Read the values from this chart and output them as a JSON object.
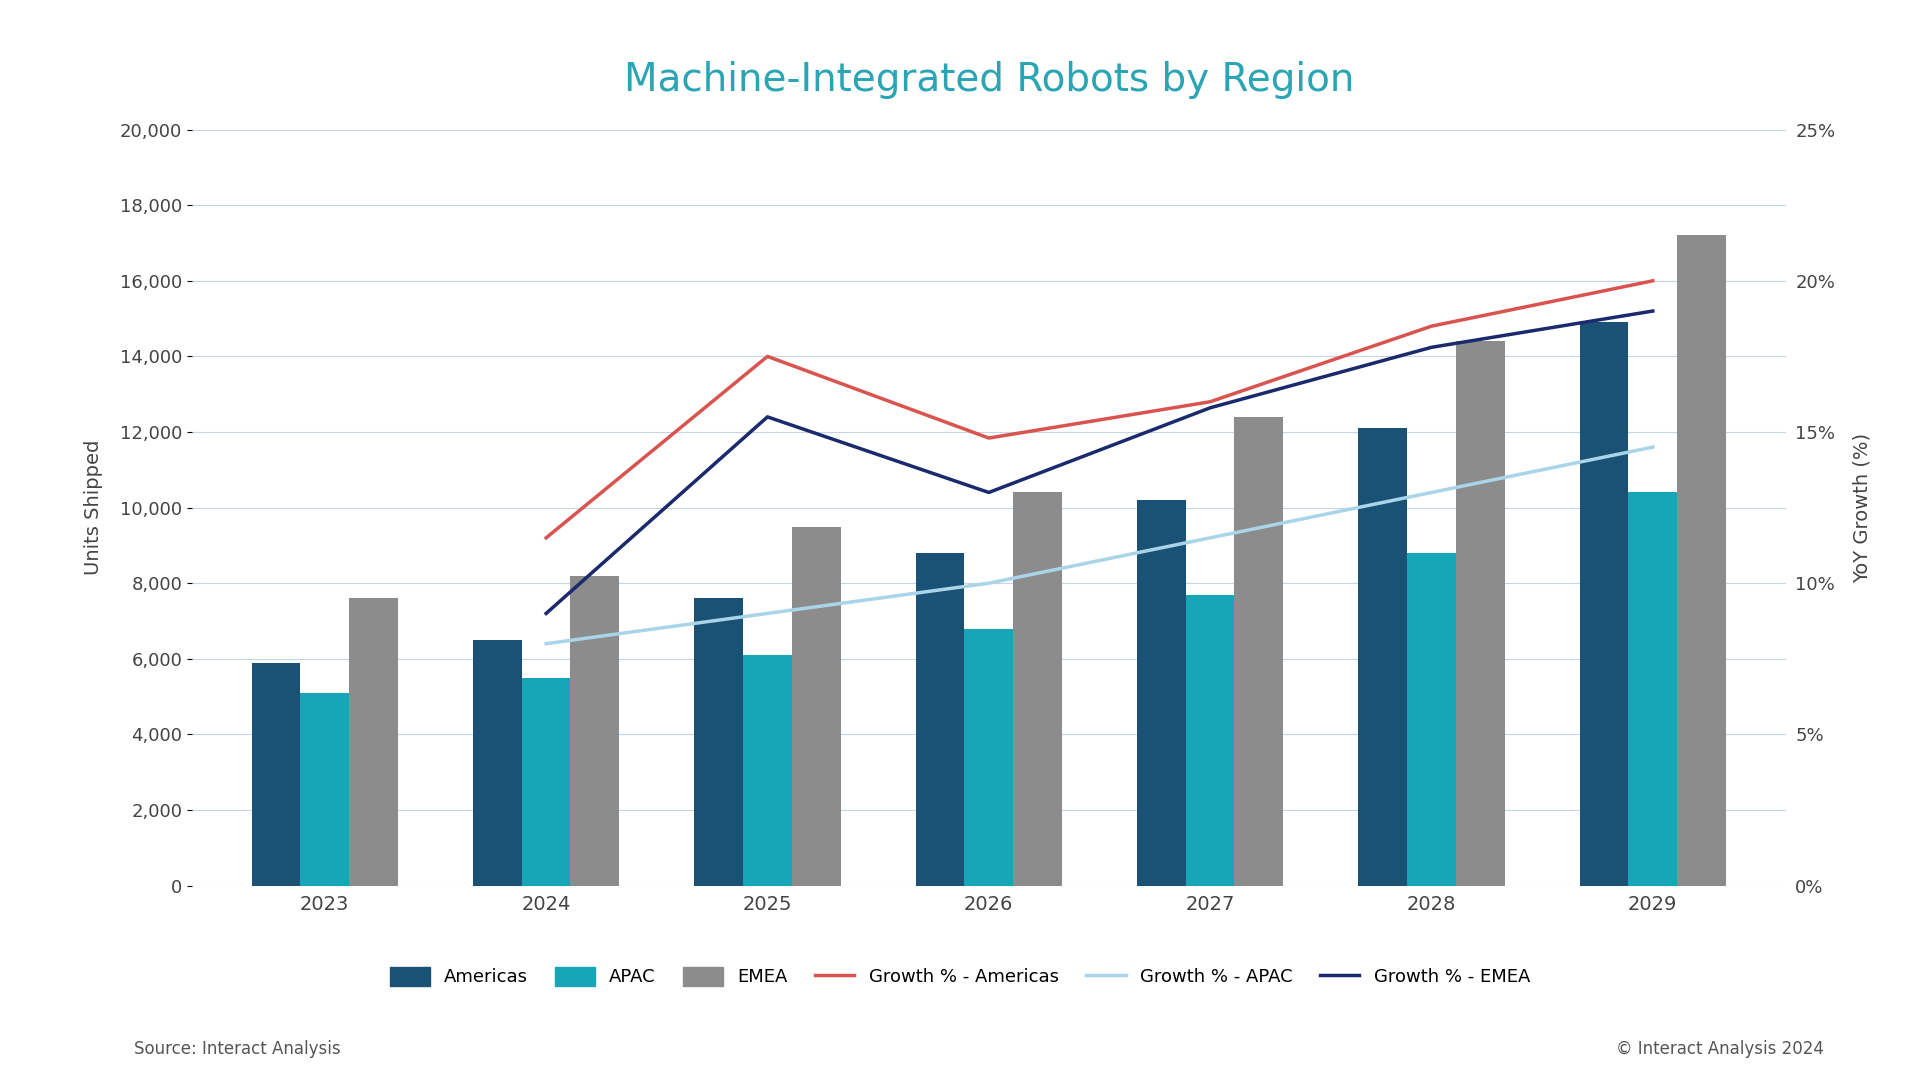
{
  "title": "Machine-Integrated Robots by Region",
  "years": [
    2023,
    2024,
    2025,
    2026,
    2027,
    2028,
    2029
  ],
  "americas": [
    5900,
    6500,
    7600,
    8800,
    10200,
    12100,
    14900
  ],
  "apac": [
    5100,
    5500,
    6100,
    6800,
    7700,
    8800,
    10400
  ],
  "emea": [
    7600,
    8200,
    9500,
    10400,
    12400,
    14400,
    17200
  ],
  "growth_americas": [
    null,
    11.5,
    17.5,
    14.8,
    16.0,
    18.5,
    20.0
  ],
  "growth_apac": [
    null,
    8.0,
    9.0,
    10.0,
    11.5,
    13.0,
    14.5
  ],
  "growth_emea": [
    null,
    9.0,
    15.5,
    13.0,
    15.8,
    17.8,
    19.0
  ],
  "color_americas": "#1a5276",
  "color_apac": "#17a5b8",
  "color_emea": "#8c8c8c",
  "color_growth_americas": "#d9534f",
  "color_growth_apac": "#aad4e8",
  "color_growth_emea": "#1a2a6c",
  "ylabel_left": "Units Shipped",
  "ylabel_right": "YoY Growth (%)",
  "ylim_left": [
    0,
    20000
  ],
  "ylim_right": [
    0,
    25
  ],
  "yticks_left": [
    0,
    2000,
    4000,
    6000,
    8000,
    10000,
    12000,
    14000,
    16000,
    18000,
    20000
  ],
  "yticks_right": [
    0,
    5,
    10,
    15,
    20,
    25
  ],
  "ytick_labels_right": [
    "0%",
    "5%",
    "10%",
    "15%",
    "20%",
    "25%"
  ],
  "background_color": "#ffffff",
  "title_color": "#29a5b5",
  "title_fontsize": 28,
  "source_text": "Source: Interact Analysis",
  "copyright_text": "© Interact Analysis 2024",
  "bar_width": 0.22
}
